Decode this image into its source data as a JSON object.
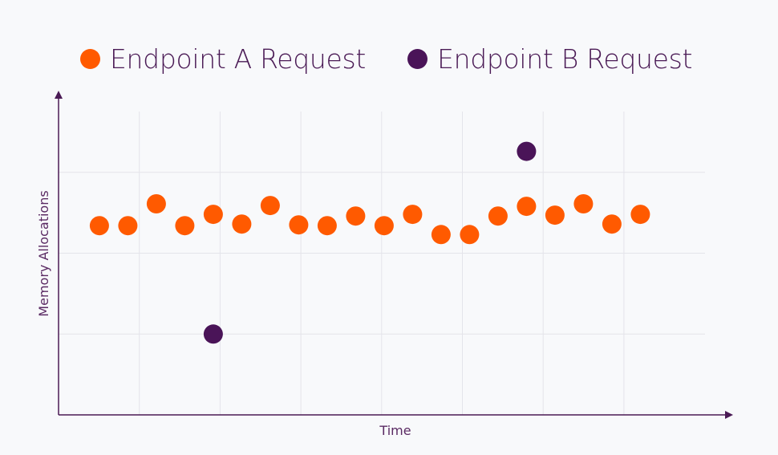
{
  "chart_data": {
    "type": "scatter",
    "title": "",
    "xlabel": "Time",
    "ylabel": "Memory Allocations",
    "xlim": [
      0,
      8.4
    ],
    "ylim": [
      0,
      4
    ],
    "grid": true,
    "legend_position": "top",
    "series": [
      {
        "name": "Endpoint A Request",
        "color": "#ff5a00",
        "points": [
          {
            "x": 0.53,
            "y": 2.34
          },
          {
            "x": 0.9,
            "y": 2.34
          },
          {
            "x": 1.27,
            "y": 2.61
          },
          {
            "x": 1.64,
            "y": 2.34
          },
          {
            "x": 2.01,
            "y": 2.48
          },
          {
            "x": 2.38,
            "y": 2.36
          },
          {
            "x": 2.75,
            "y": 2.59
          },
          {
            "x": 3.12,
            "y": 2.35
          },
          {
            "x": 3.49,
            "y": 2.34
          },
          {
            "x": 3.86,
            "y": 2.46
          },
          {
            "x": 4.23,
            "y": 2.34
          },
          {
            "x": 4.6,
            "y": 2.48
          },
          {
            "x": 4.97,
            "y": 2.23
          },
          {
            "x": 5.34,
            "y": 2.23
          },
          {
            "x": 5.71,
            "y": 2.46
          },
          {
            "x": 6.08,
            "y": 2.58
          },
          {
            "x": 6.45,
            "y": 2.47
          },
          {
            "x": 6.82,
            "y": 2.61
          },
          {
            "x": 7.19,
            "y": 2.36
          },
          {
            "x": 7.56,
            "y": 2.48
          }
        ]
      },
      {
        "name": "Endpoint B Request",
        "color": "#4a1458",
        "points": [
          {
            "x": 2.01,
            "y": 1.0
          },
          {
            "x": 6.08,
            "y": 3.26
          }
        ]
      }
    ]
  }
}
